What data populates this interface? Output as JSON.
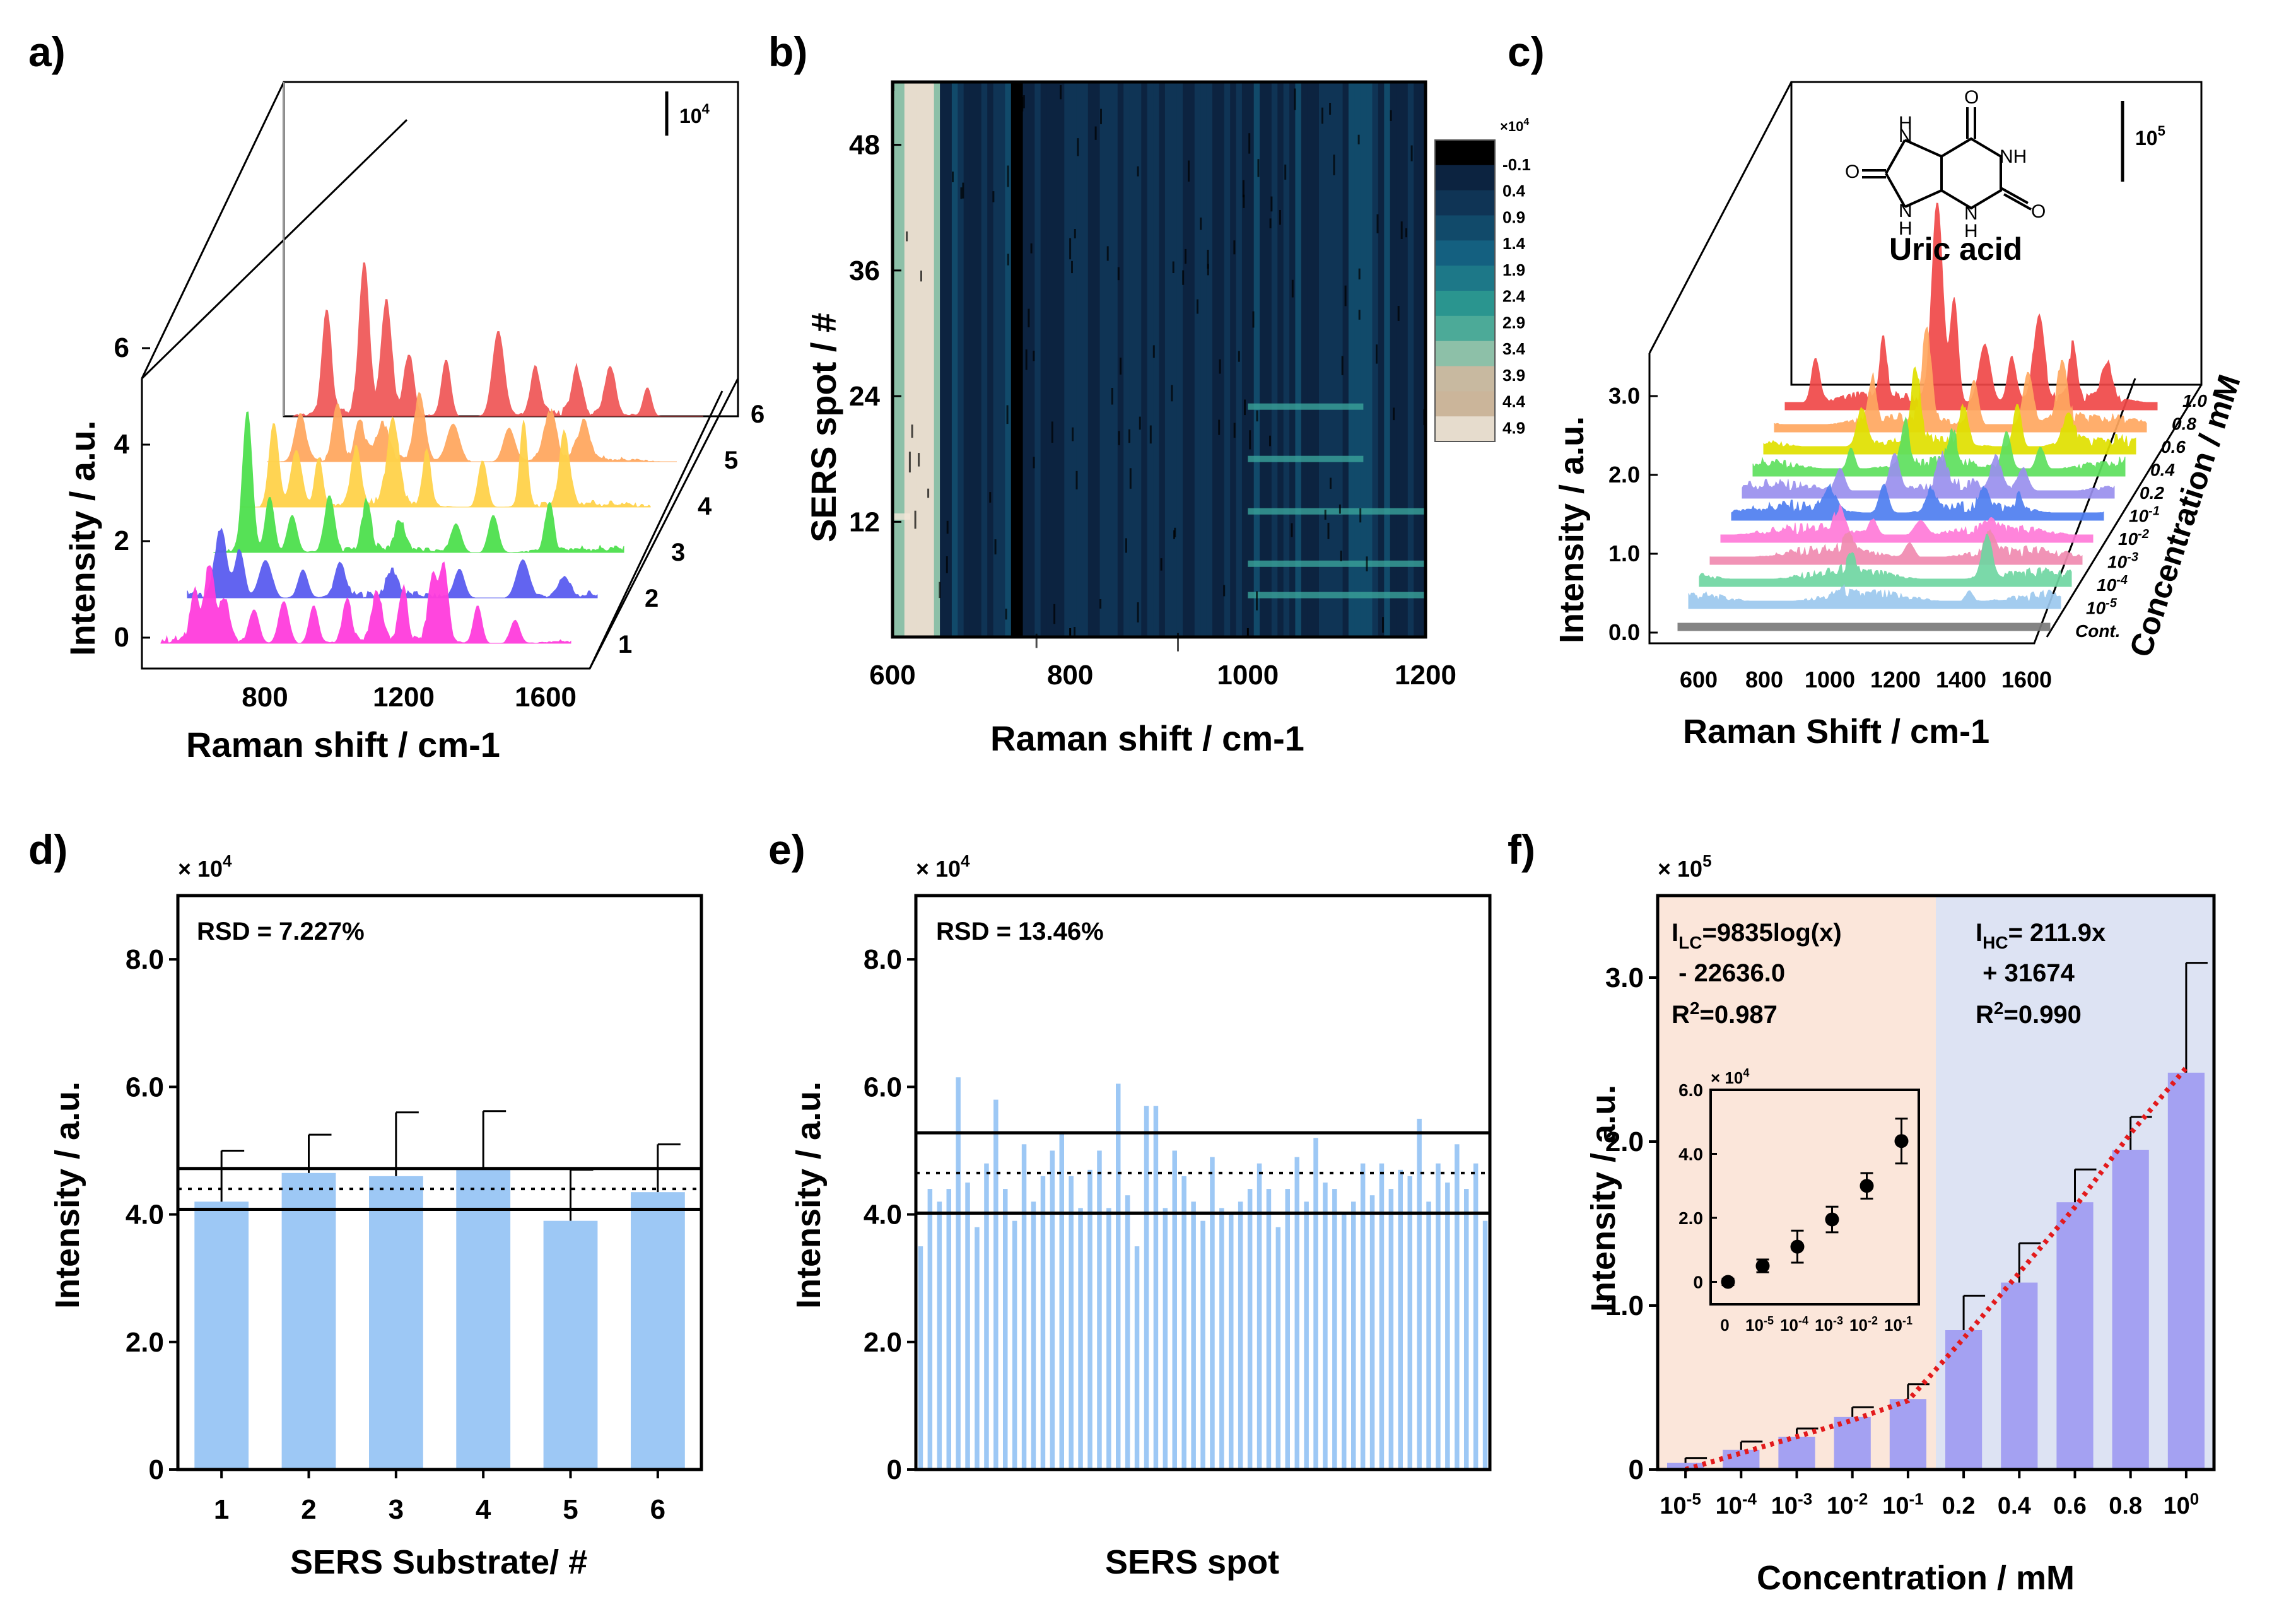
{
  "colors": {
    "spectra_a": [
      "#ff3ddd",
      "#5a5cf0",
      "#4ee04e",
      "#ffd24a",
      "#ffa860",
      "#f05a5a"
    ],
    "spectra_c": [
      "#7a7a7a",
      "#9cc8ee",
      "#6fd6a2",
      "#f08ab0",
      "#ff7ad8",
      "#4f7ef0",
      "#9a90ee",
      "#5ee05e",
      "#e0e000",
      "#ffa860",
      "#f04848"
    ],
    "bar_blue": "#9dc8f5",
    "bar_purple": "#a4a1f2",
    "fit_red": "#e31a1c",
    "lc_region": "#fbe6da",
    "hc_region": "#dde3f3",
    "heatmap_scale": [
      "#000000",
      "#0c2340",
      "#0f3455",
      "#114a6a",
      "#146080",
      "#1d7888",
      "#2a958f",
      "#4caa98",
      "#8dc0a8",
      "#c8b9a0",
      "#cbb59a",
      "#e6dccd"
    ]
  },
  "chart_data": [
    {
      "panel": "a)",
      "type": "line",
      "style": "3D waterfall",
      "xlabel": "Raman shift / cm-1",
      "ylabel": "Intensity / a.u.",
      "x_ticks": [
        "800",
        "1200",
        "1600"
      ],
      "y_ticks": [
        "0",
        "2",
        "4",
        "6"
      ],
      "z_ticks": [
        "1",
        "2",
        "3",
        "4",
        "5",
        "6"
      ],
      "scale_bar": "10",
      "scale_bar_exp": "4",
      "series": [
        {
          "name": "1",
          "peaks": [
            [
              640,
              1.1
            ],
            [
              680,
              1.6
            ],
            [
              720,
              0.9
            ],
            [
              800,
              0.7
            ],
            [
              880,
              0.9
            ],
            [
              960,
              0.8
            ],
            [
              1050,
              0.9
            ],
            [
              1130,
              1.0
            ],
            [
              1200,
              1.1
            ],
            [
              1280,
              1.4
            ],
            [
              1310,
              1.6
            ],
            [
              1400,
              0.8
            ],
            [
              1500,
              0.5
            ]
          ]
        },
        {
          "name": "2",
          "peaks": [
            [
              640,
              1.4
            ],
            [
              690,
              1.0
            ],
            [
              760,
              0.8
            ],
            [
              860,
              0.6
            ],
            [
              960,
              0.7
            ],
            [
              1100,
              0.5
            ],
            [
              1280,
              0.6
            ],
            [
              1450,
              0.8
            ],
            [
              1560,
              0.4
            ]
          ]
        },
        {
          "name": "3",
          "peaks": [
            [
              640,
              3.0
            ],
            [
              700,
              1.2
            ],
            [
              760,
              0.8
            ],
            [
              860,
              1.2
            ],
            [
              960,
              1.0
            ],
            [
              1050,
              0.6
            ],
            [
              1200,
              0.6
            ],
            [
              1300,
              0.8
            ],
            [
              1450,
              1.0
            ]
          ]
        },
        {
          "name": "4",
          "peaks": [
            [
              640,
              1.8
            ],
            [
              700,
              1.2
            ],
            [
              760,
              1.0
            ],
            [
              860,
              1.2
            ],
            [
              960,
              1.8
            ],
            [
              1050,
              1.2
            ],
            [
              1200,
              1.0
            ],
            [
              1310,
              1.8
            ],
            [
              1420,
              1.5
            ]
          ]
        },
        {
          "name": "5",
          "peaks": [
            [
              640,
              1.0
            ],
            [
              740,
              1.2
            ],
            [
              800,
              0.8
            ],
            [
              860,
              0.7
            ],
            [
              960,
              1.4
            ],
            [
              1050,
              0.8
            ],
            [
              1200,
              0.7
            ],
            [
              1310,
              1.0
            ],
            [
              1400,
              0.8
            ]
          ]
        },
        {
          "name": "6",
          "peaks": [
            [
              640,
              2.2
            ],
            [
              740,
              3.2
            ],
            [
              800,
              2.4
            ],
            [
              860,
              1.3
            ],
            [
              960,
              1.2
            ],
            [
              1100,
              1.8
            ],
            [
              1200,
              1.0
            ],
            [
              1310,
              1.0
            ],
            [
              1400,
              1.0
            ],
            [
              1500,
              0.6
            ]
          ]
        }
      ]
    },
    {
      "panel": "b)",
      "type": "heatmap",
      "xlabel": "Raman shift / cm-1",
      "ylabel": "SERS spot / #",
      "x_range": [
        600,
        1200
      ],
      "y_range": [
        1,
        54
      ],
      "x_ticks": [
        "600",
        "800",
        "1000",
        "1200"
      ],
      "y_ticks": [
        "12",
        "24",
        "36",
        "48"
      ],
      "colorbar_unit": "×10",
      "colorbar_unit_exp": "4",
      "colorbar_labels": [
        "-0.1",
        "0.4",
        "0.9",
        "1.4",
        "1.9",
        "2.4",
        "2.9",
        "3.4",
        "3.9",
        "4.4",
        "4.9"
      ]
    },
    {
      "panel": "c)",
      "type": "line",
      "style": "3D waterfall",
      "xlabel": "Raman Shift / cm-1",
      "ylabel": "Intensity / a.u.",
      "zlabel": "Concentration / mM",
      "x_ticks": [
        "600",
        "800",
        "1000",
        "1200",
        "1400",
        "1600"
      ],
      "y_ticks": [
        "0.0",
        "1.0",
        "2.0",
        "3.0"
      ],
      "scale_bar": "10",
      "scale_bar_exp": "5",
      "molecule": "Uric acid",
      "series": [
        {
          "name": "Cont.",
          "peaks": [
            [
              1300,
              0.02
            ]
          ]
        },
        {
          "name": "10-5",
          "peaks": [
            [
              1000,
              0.1
            ],
            [
              1380,
              0.15
            ]
          ]
        },
        {
          "name": "10-4",
          "peaks": [
            [
              1000,
              0.2
            ],
            [
              1400,
              0.55
            ]
          ]
        },
        {
          "name": "10-3",
          "peaks": [
            [
              960,
              0.2
            ],
            [
              1140,
              0.2
            ],
            [
              1380,
              0.3
            ]
          ]
        },
        {
          "name": "10-2",
          "peaks": [
            [
              900,
              0.3
            ],
            [
              1000,
              0.2
            ],
            [
              1140,
              0.2
            ],
            [
              1350,
              0.2
            ]
          ]
        },
        {
          "name": "10-1",
          "peaks": [
            [
              840,
              0.3
            ],
            [
              1000,
              0.4
            ],
            [
              1140,
              0.3
            ],
            [
              1300,
              0.3
            ],
            [
              1400,
              0.2
            ]
          ]
        },
        {
          "name": "0.2",
          "peaks": [
            [
              840,
              0.3
            ],
            [
              1000,
              0.5
            ],
            [
              1140,
              0.4
            ],
            [
              1300,
              0.4
            ],
            [
              1380,
              0.3
            ]
          ]
        },
        {
          "name": "0.4",
          "peaks": [
            [
              840,
              0.3
            ],
            [
              1000,
              0.6
            ],
            [
              1140,
              0.4
            ],
            [
              1300,
              0.5
            ],
            [
              1400,
              0.3
            ]
          ]
        },
        {
          "name": "0.6",
          "peaks": [
            [
              840,
              0.5
            ],
            [
              1000,
              1.0
            ],
            [
              1140,
              0.5
            ],
            [
              1300,
              0.6
            ],
            [
              1450,
              0.4
            ]
          ]
        },
        {
          "name": "0.8",
          "peaks": [
            [
              840,
              0.6
            ],
            [
              1000,
              1.2
            ],
            [
              1140,
              0.6
            ],
            [
              1300,
              0.7
            ],
            [
              1400,
              0.8
            ]
          ]
        },
        {
          "name": "1.0",
          "peaks": [
            [
              640,
              0.6
            ],
            [
              840,
              0.8
            ],
            [
              1000,
              2.7
            ],
            [
              1050,
              1.4
            ],
            [
              1140,
              0.8
            ],
            [
              1220,
              0.6
            ],
            [
              1300,
              1.1
            ],
            [
              1400,
              0.7
            ],
            [
              1500,
              0.5
            ]
          ]
        }
      ]
    },
    {
      "panel": "d)",
      "type": "bar",
      "xlabel": "SERS Substrate/ #",
      "ylabel": "Intensity / a.u.",
      "y_unit": "× 10",
      "y_unit_exp": "4",
      "ylim": [
        0,
        9
      ],
      "y_ticks": [
        "0",
        "2.0",
        "4.0",
        "6.0",
        "8.0"
      ],
      "categories": [
        "1",
        "2",
        "3",
        "4",
        "5",
        "6"
      ],
      "values": [
        4.2,
        4.65,
        4.6,
        4.72,
        3.9,
        4.35
      ],
      "errors": [
        0.8,
        0.6,
        1.0,
        0.9,
        0.8,
        0.75
      ],
      "mean": 4.4,
      "upper_line": 4.72,
      "lower_line": 4.08,
      "annotation": "RSD = 7.227%"
    },
    {
      "panel": "e)",
      "type": "bar",
      "xlabel": "SERS spot",
      "ylabel": "Intensity / a.u.",
      "y_unit": "× 10",
      "y_unit_exp": "4",
      "ylim": [
        0,
        9
      ],
      "y_ticks": [
        "0",
        "2.0",
        "4.0",
        "6.0",
        "8.0"
      ],
      "values": [
        3.5,
        4.4,
        4.2,
        4.4,
        6.15,
        4.5,
        3.8,
        4.8,
        5.8,
        4.4,
        3.9,
        5.1,
        4.2,
        4.6,
        5.0,
        5.3,
        4.6,
        4.1,
        4.7,
        5.0,
        4.1,
        6.05,
        4.3,
        3.5,
        5.7,
        5.7,
        4.1,
        5.0,
        4.6,
        4.2,
        3.9,
        4.9,
        4.1,
        4.0,
        4.2,
        4.4,
        4.8,
        4.4,
        3.8,
        4.4,
        4.9,
        4.2,
        5.2,
        4.5,
        4.4,
        4.0,
        4.2,
        4.8,
        4.3,
        4.8,
        4.4,
        4.7,
        4.6,
        5.5,
        4.2,
        4.8,
        4.5,
        5.1,
        4.4,
        4.8,
        3.9
      ],
      "mean": 4.65,
      "upper_line": 5.28,
      "lower_line": 4.02,
      "annotation": "RSD = 13.46%"
    },
    {
      "panel": "f)",
      "type": "bar",
      "xlabel": "Concentration / mM",
      "ylabel": "Intensity / a.u.",
      "y_unit": "× 10",
      "y_unit_exp": "5",
      "ylim": [
        0,
        3.5
      ],
      "y_ticks": [
        "0",
        "1.0",
        "2.0",
        "3.0"
      ],
      "categories": [
        "10-5",
        "10-4",
        "10-3",
        "10-2",
        "10-1",
        "0.2",
        "0.4",
        "0.6",
        "0.8",
        "100"
      ],
      "category_labels": [
        [
          "10",
          "-5"
        ],
        [
          "10",
          "-4"
        ],
        [
          "10",
          "-3"
        ],
        [
          "10",
          "-2"
        ],
        [
          "10",
          "-1"
        ],
        [
          "0.2",
          ""
        ],
        [
          "0.4",
          ""
        ],
        [
          "0.6",
          ""
        ],
        [
          "0.8",
          ""
        ],
        [
          "10",
          "0"
        ]
      ],
      "values": [
        0.04,
        0.12,
        0.2,
        0.32,
        0.43,
        0.85,
        1.14,
        1.63,
        1.95,
        2.42
      ],
      "errors": [
        0.03,
        0.05,
        0.05,
        0.06,
        0.09,
        0.21,
        0.24,
        0.2,
        0.2,
        0.67
      ],
      "fit_curve": [
        0.0,
        0.1,
        0.2,
        0.3,
        0.42,
        0.8,
        1.2,
        1.6,
        2.05,
        2.45
      ],
      "lc_eq_line1": "I",
      "lc_eq_sub": "LC",
      "lc_eq_line1_rest": "=9835log(x)",
      "lc_eq_line2": " - 22636.0",
      "lc_r2": "R",
      "lc_r2_sup": "2",
      "lc_r2_val": "=0.987",
      "hc_eq_line1": "I",
      "hc_eq_sub": "HC",
      "hc_eq_line1_rest": "= 211.9x",
      "hc_eq_line2": " + 31674",
      "hc_r2": "R",
      "hc_r2_sup": "2",
      "hc_r2_val": "=0.990",
      "inset": {
        "type": "scatter",
        "y_unit": "× 10",
        "y_unit_exp": "4",
        "ylim": [
          -0.7,
          6.0
        ],
        "y_ticks": [
          "0",
          "2.0",
          "4.0",
          "6.0"
        ],
        "categories": [
          "0",
          "10-5",
          "10-4",
          "10-3",
          "10-2",
          "10-1"
        ],
        "category_labels": [
          [
            "0",
            ""
          ],
          [
            "10",
            "-5"
          ],
          [
            "10",
            "-4"
          ],
          [
            "10",
            "-3"
          ],
          [
            "10",
            "-2"
          ],
          [
            "10",
            "-1"
          ]
        ],
        "values": [
          0.0,
          0.5,
          1.1,
          1.95,
          3.0,
          4.4
        ],
        "errors": [
          0.1,
          0.2,
          0.5,
          0.4,
          0.4,
          0.7
        ]
      }
    }
  ]
}
